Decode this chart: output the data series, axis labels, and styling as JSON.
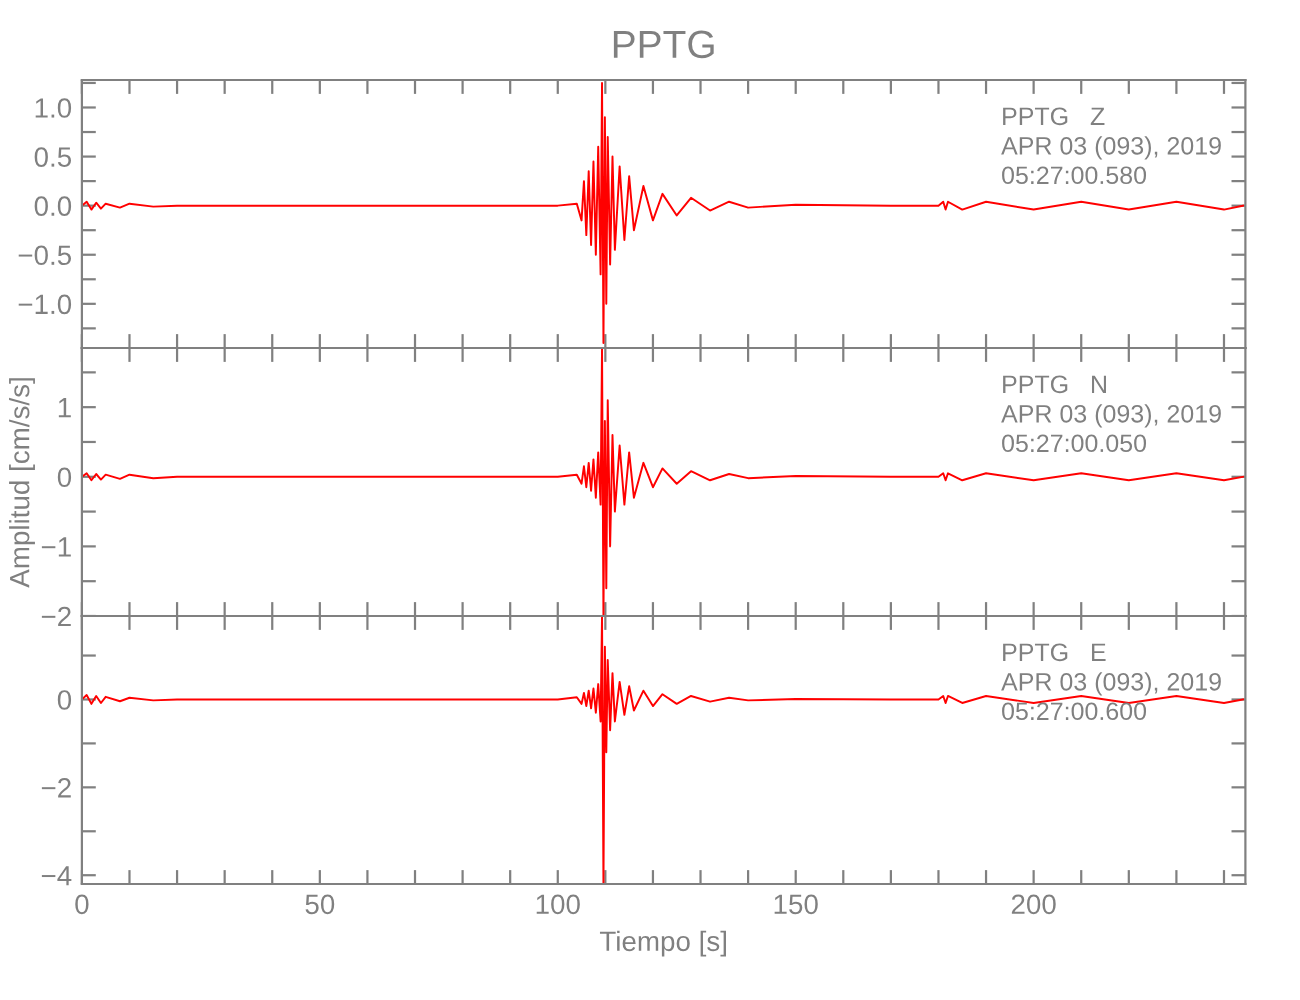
{
  "chart_data": [
    {
      "type": "line",
      "title": "PPTG",
      "tick_labels": "y",
      "annotations": [
        "PPTG   Z",
        "APR 03 (093), 2019",
        "05:27:00.580"
      ],
      "xlim": [
        0,
        244.5
      ],
      "xticks": [
        {
          "value": 0,
          "label": null
        },
        {
          "value": 10,
          "label": null
        },
        {
          "value": 20,
          "label": null
        },
        {
          "value": 30,
          "label": null
        },
        {
          "value": 40,
          "label": null
        },
        {
          "value": 50,
          "label": null
        },
        {
          "value": 60,
          "label": null
        },
        {
          "value": 70,
          "label": null
        },
        {
          "value": 80,
          "label": null
        },
        {
          "value": 90,
          "label": null
        },
        {
          "value": 100,
          "label": null
        },
        {
          "value": 110,
          "label": null
        },
        {
          "value": 120,
          "label": null
        },
        {
          "value": 130,
          "label": null
        },
        {
          "value": 140,
          "label": null
        },
        {
          "value": 150,
          "label": null
        },
        {
          "value": 160,
          "label": null
        },
        {
          "value": 170,
          "label": null
        },
        {
          "value": 180,
          "label": null
        },
        {
          "value": 190,
          "label": null
        },
        {
          "value": 200,
          "label": null
        },
        {
          "value": 210,
          "label": null
        },
        {
          "value": 220,
          "label": null
        },
        {
          "value": 230,
          "label": null
        },
        {
          "value": 240,
          "label": null
        }
      ],
      "ylim": [
        -1.45,
        1.28
      ],
      "yticks": [
        {
          "value": -1.25,
          "label": null
        },
        {
          "value": -1.0,
          "label": "−1.0"
        },
        {
          "value": -0.75,
          "label": null
        },
        {
          "value": -0.5,
          "label": "−0.5"
        },
        {
          "value": -0.25,
          "label": null
        },
        {
          "value": 0,
          "label": "0.0"
        },
        {
          "value": 0.25,
          "label": null
        },
        {
          "value": 0.5,
          "label": "0.5"
        },
        {
          "value": 0.75,
          "label": null
        },
        {
          "value": 1.0,
          "label": "1.0"
        },
        {
          "value": 1.25,
          "label": null
        }
      ],
      "series": [
        {
          "color": "#ff0000",
          "x": [
            0,
            1,
            2,
            3,
            4,
            5,
            8,
            10,
            15,
            20,
            40,
            60,
            80,
            100,
            104,
            105,
            105.5,
            106,
            106.5,
            107,
            107.5,
            108,
            108.5,
            109,
            109.3,
            109.6,
            109.9,
            110.2,
            110.5,
            111,
            111.5,
            112,
            113,
            114,
            115,
            116,
            118,
            120,
            122,
            125,
            128,
            132,
            136,
            140,
            150,
            170,
            180,
            181,
            181.5,
            182,
            185,
            190,
            200,
            210,
            220,
            230,
            240,
            244
          ],
          "values": [
            0,
            0.04,
            -0.04,
            0.03,
            -0.03,
            0.02,
            -0.02,
            0.02,
            -0.01,
            0,
            0,
            0,
            0,
            0,
            0.02,
            -0.15,
            0.25,
            -0.3,
            0.35,
            -0.4,
            0.45,
            -0.5,
            0.6,
            -0.7,
            1.25,
            -1.4,
            0.9,
            -1.0,
            0.7,
            -0.6,
            0.5,
            -0.45,
            0.4,
            -0.35,
            0.3,
            -0.25,
            0.2,
            -0.15,
            0.12,
            -0.1,
            0.08,
            -0.05,
            0.04,
            -0.02,
            0.01,
            0,
            0,
            0.04,
            -0.04,
            0.04,
            -0.04,
            0.04,
            -0.04,
            0.04,
            -0.04,
            0.04,
            -0.04,
            0
          ]
        }
      ]
    },
    {
      "type": "line",
      "tick_labels": "y",
      "ylabel": "Amplitud [cm/s/s]",
      "annotations": [
        "PPTG   N",
        "APR 03 (093), 2019",
        "05:27:00.050"
      ],
      "xlim": [
        0,
        244.5
      ],
      "xticks": [
        {
          "value": 0,
          "label": null
        },
        {
          "value": 10,
          "label": null
        },
        {
          "value": 20,
          "label": null
        },
        {
          "value": 30,
          "label": null
        },
        {
          "value": 40,
          "label": null
        },
        {
          "value": 50,
          "label": null
        },
        {
          "value": 60,
          "label": null
        },
        {
          "value": 70,
          "label": null
        },
        {
          "value": 80,
          "label": null
        },
        {
          "value": 90,
          "label": null
        },
        {
          "value": 100,
          "label": null
        },
        {
          "value": 110,
          "label": null
        },
        {
          "value": 120,
          "label": null
        },
        {
          "value": 130,
          "label": null
        },
        {
          "value": 140,
          "label": null
        },
        {
          "value": 150,
          "label": null
        },
        {
          "value": 160,
          "label": null
        },
        {
          "value": 170,
          "label": null
        },
        {
          "value": 180,
          "label": null
        },
        {
          "value": 190,
          "label": null
        },
        {
          "value": 200,
          "label": null
        },
        {
          "value": 210,
          "label": null
        },
        {
          "value": 220,
          "label": null
        },
        {
          "value": 230,
          "label": null
        },
        {
          "value": 240,
          "label": null
        }
      ],
      "ylim": [
        -2,
        1.85
      ],
      "yticks": [
        {
          "value": -2,
          "label": "−2"
        },
        {
          "value": -1.5,
          "label": null
        },
        {
          "value": -1,
          "label": "−1"
        },
        {
          "value": -0.5,
          "label": null
        },
        {
          "value": 0,
          "label": "0"
        },
        {
          "value": 0.5,
          "label": null
        },
        {
          "value": 1,
          "label": "1"
        },
        {
          "value": 1.5,
          "label": null
        }
      ],
      "series": [
        {
          "color": "#ff0000",
          "x": [
            0,
            1,
            2,
            3,
            4,
            5,
            8,
            10,
            15,
            20,
            40,
            60,
            80,
            100,
            104,
            105,
            105.5,
            106,
            106.5,
            107,
            107.5,
            108,
            108.5,
            109,
            109.3,
            109.6,
            109.9,
            110.2,
            110.5,
            111,
            111.5,
            112,
            113,
            114,
            115,
            116,
            118,
            120,
            122,
            125,
            128,
            132,
            136,
            140,
            150,
            170,
            180,
            181,
            181.5,
            182,
            185,
            190,
            200,
            210,
            220,
            230,
            240,
            244
          ],
          "values": [
            0,
            0.05,
            -0.05,
            0.04,
            -0.04,
            0.03,
            -0.03,
            0.03,
            -0.02,
            0,
            0,
            0,
            0,
            0,
            0.03,
            -0.1,
            0.15,
            -0.15,
            0.2,
            -0.2,
            0.25,
            -0.3,
            0.35,
            -0.4,
            1.85,
            -2.0,
            0.8,
            -1.6,
            1.1,
            -1.0,
            0.6,
            -0.5,
            0.45,
            -0.4,
            0.35,
            -0.3,
            0.2,
            -0.15,
            0.12,
            -0.1,
            0.08,
            -0.05,
            0.04,
            -0.02,
            0.01,
            0,
            0,
            0.05,
            -0.05,
            0.05,
            -0.05,
            0.05,
            -0.05,
            0.05,
            -0.05,
            0.05,
            -0.05,
            0
          ]
        }
      ]
    },
    {
      "type": "line",
      "xlabel": "Tiempo [s]",
      "annotations": [
        "PPTG   E",
        "APR 03 (093), 2019",
        "05:27:00.600"
      ],
      "xlim": [
        0,
        244.5
      ],
      "xticks": [
        {
          "value": 0,
          "label": "0"
        },
        {
          "value": 10,
          "label": null
        },
        {
          "value": 20,
          "label": null
        },
        {
          "value": 30,
          "label": null
        },
        {
          "value": 40,
          "label": null
        },
        {
          "value": 50,
          "label": "50"
        },
        {
          "value": 60,
          "label": null
        },
        {
          "value": 70,
          "label": null
        },
        {
          "value": 80,
          "label": null
        },
        {
          "value": 90,
          "label": null
        },
        {
          "value": 100,
          "label": "100"
        },
        {
          "value": 110,
          "label": null
        },
        {
          "value": 120,
          "label": null
        },
        {
          "value": 130,
          "label": null
        },
        {
          "value": 140,
          "label": null
        },
        {
          "value": 150,
          "label": "150"
        },
        {
          "value": 160,
          "label": null
        },
        {
          "value": 170,
          "label": null
        },
        {
          "value": 180,
          "label": null
        },
        {
          "value": 190,
          "label": null
        },
        {
          "value": 200,
          "label": "200"
        },
        {
          "value": 210,
          "label": null
        },
        {
          "value": 220,
          "label": null
        },
        {
          "value": 230,
          "label": null
        },
        {
          "value": 240,
          "label": null
        }
      ],
      "ylim": [
        -4.2,
        1.9
      ],
      "yticks": [
        {
          "value": -4,
          "label": "−4"
        },
        {
          "value": -3,
          "label": null
        },
        {
          "value": -2,
          "label": "−2"
        },
        {
          "value": -1,
          "label": null
        },
        {
          "value": 0,
          "label": "0"
        },
        {
          "value": 1,
          "label": null
        }
      ],
      "series": [
        {
          "color": "#ff0000",
          "x": [
            0,
            1,
            2,
            3,
            4,
            5,
            8,
            10,
            15,
            20,
            40,
            60,
            80,
            100,
            104,
            105,
            105.5,
            106,
            106.5,
            107,
            107.5,
            108,
            108.5,
            109,
            109.3,
            109.6,
            109.9,
            110.2,
            110.5,
            111,
            111.5,
            112,
            113,
            114,
            115,
            116,
            118,
            120,
            122,
            125,
            128,
            132,
            136,
            140,
            150,
            170,
            180,
            181,
            181.5,
            182,
            185,
            190,
            200,
            210,
            220,
            230,
            240,
            244
          ],
          "values": [
            0,
            0.1,
            -0.1,
            0.08,
            -0.08,
            0.06,
            -0.04,
            0.04,
            -0.02,
            0,
            0,
            0,
            0,
            0,
            0.05,
            -0.1,
            0.15,
            -0.15,
            0.2,
            -0.2,
            0.25,
            -0.3,
            0.35,
            -0.5,
            1.9,
            -4.2,
            1.2,
            -1.2,
            0.9,
            -0.7,
            0.6,
            -0.5,
            0.4,
            -0.35,
            0.3,
            -0.25,
            0.2,
            -0.15,
            0.12,
            -0.1,
            0.08,
            -0.05,
            0.04,
            -0.02,
            0.01,
            0,
            0,
            0.08,
            -0.08,
            0.08,
            -0.08,
            0.08,
            -0.08,
            0.08,
            -0.08,
            0.08,
            -0.08,
            0
          ]
        }
      ]
    }
  ]
}
